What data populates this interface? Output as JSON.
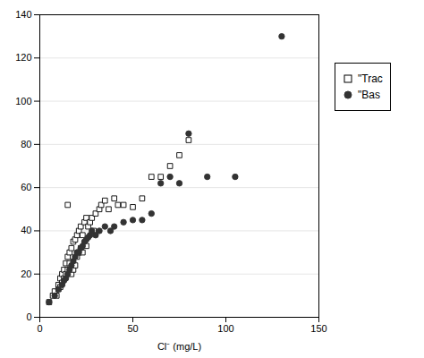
{
  "chart_data": {
    "type": "scatter",
    "xlabel": "Cl⁻ (mg/L)",
    "xlim": [
      0,
      150
    ],
    "ylim": [
      0,
      140
    ],
    "xticks": [
      0,
      50,
      100,
      150
    ],
    "yticks": [
      0,
      20,
      40,
      60,
      80,
      100,
      120,
      140
    ],
    "grid": "y",
    "legend": "right",
    "series": [
      {
        "name": "\"Trac",
        "color": "#000000",
        "marker": "square",
        "x": [
          5,
          7,
          8,
          9,
          10,
          10,
          11,
          11,
          12,
          12,
          13,
          13,
          14,
          14,
          15,
          15,
          15,
          16,
          16,
          17,
          17,
          18,
          18,
          19,
          19,
          20,
          20,
          21,
          21,
          22,
          22,
          23,
          23,
          24,
          24,
          25,
          25,
          26,
          27,
          28,
          29,
          30,
          32,
          33,
          35,
          37,
          40,
          42,
          45,
          50,
          55,
          60,
          65,
          70,
          75,
          80
        ],
        "y": [
          7,
          10,
          12,
          10,
          13,
          15,
          18,
          14,
          20,
          16,
          22,
          18,
          25,
          20,
          28,
          22,
          52,
          25,
          30,
          32,
          20,
          35,
          22,
          36,
          24,
          38,
          28,
          40,
          30,
          42,
          32,
          38,
          30,
          44,
          34,
          46,
          33,
          42,
          44,
          46,
          40,
          48,
          50,
          52,
          54,
          50,
          55,
          52,
          52,
          51,
          55,
          65,
          65,
          70,
          75,
          82
        ]
      },
      {
        "name": "\"Bas",
        "color": "#333333",
        "marker": "circle",
        "x": [
          5,
          8,
          10,
          12,
          13,
          14,
          15,
          16,
          17,
          18,
          19,
          20,
          21,
          22,
          23,
          24,
          25,
          26,
          27,
          28,
          30,
          32,
          35,
          38,
          40,
          45,
          50,
          55,
          60,
          65,
          70,
          75,
          80,
          90,
          105,
          130
        ],
        "y": [
          7,
          10,
          13,
          15,
          17,
          18,
          20,
          22,
          24,
          26,
          28,
          30,
          30,
          32,
          33,
          35,
          36,
          37,
          38,
          40,
          38,
          40,
          42,
          40,
          42,
          44,
          45,
          45,
          48,
          62,
          65,
          62,
          85,
          65,
          65,
          130
        ]
      }
    ]
  }
}
